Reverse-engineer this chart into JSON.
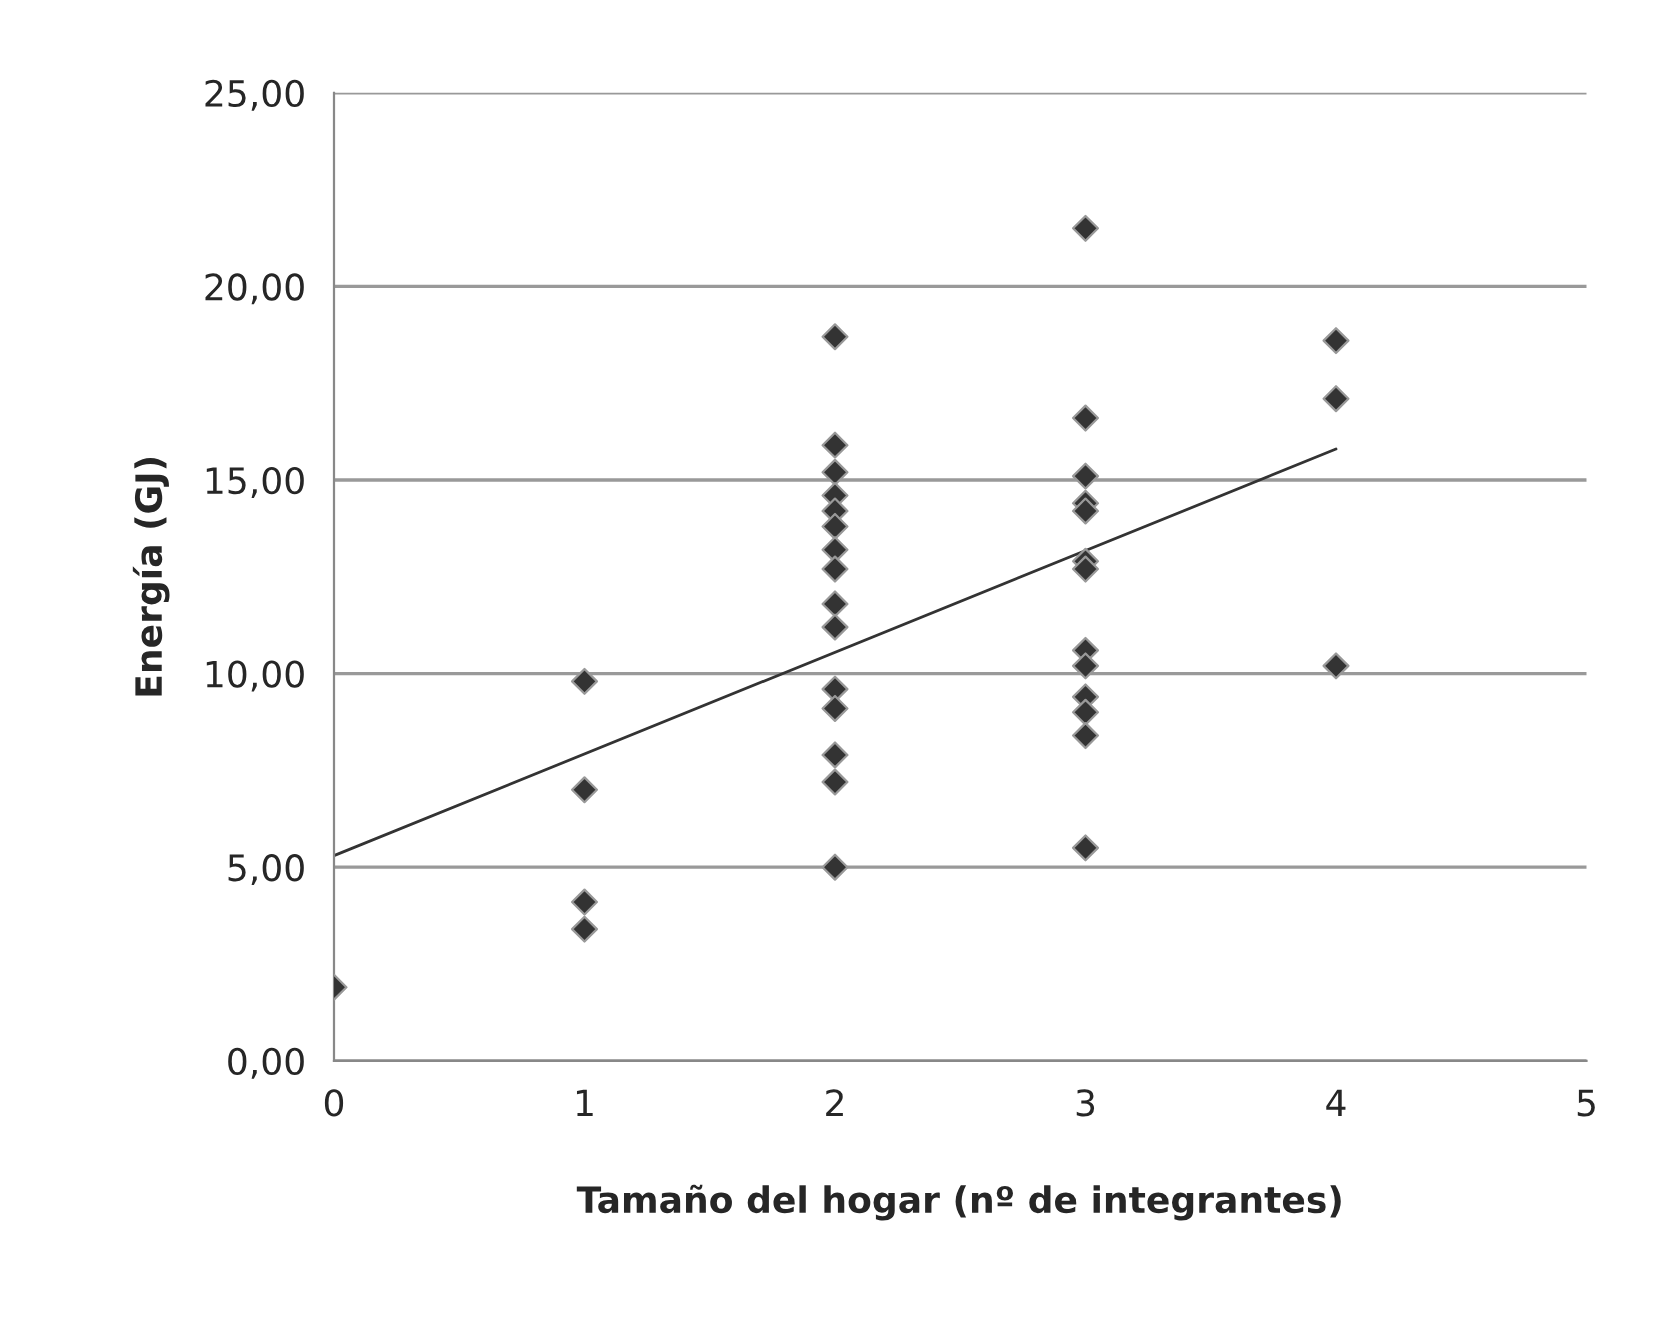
{
  "chart_data": {
    "type": "scatter",
    "xlabel": "Tamaño del hogar (nº de integrantes)",
    "ylabel": "Energía (GJ)",
    "xlim": [
      0,
      5
    ],
    "xticks": [
      0,
      1,
      2,
      3,
      4,
      5
    ],
    "ylim": [
      0,
      25
    ],
    "yticks": [
      {
        "value": 0,
        "label": "0,00"
      },
      {
        "value": 5,
        "label": "5,00"
      },
      {
        "value": 10,
        "label": "10,00"
      },
      {
        "value": 15,
        "label": "15,00"
      },
      {
        "value": 20,
        "label": "20,00"
      },
      {
        "value": 25,
        "label": "25,00"
      }
    ],
    "grid": "y",
    "marker": "diamond",
    "series": [
      {
        "color": "#333333",
        "x": [
          0,
          1,
          1,
          1,
          1,
          2,
          2,
          2,
          2,
          2,
          2,
          2,
          2,
          2,
          2,
          2,
          2,
          2,
          2,
          2,
          3,
          3,
          3,
          3,
          3,
          3,
          3,
          3,
          3,
          3,
          3,
          3,
          3,
          4,
          4,
          4
        ],
        "values": [
          1.9,
          9.8,
          7.0,
          4.1,
          3.4,
          18.7,
          15.9,
          15.2,
          14.6,
          14.2,
          13.8,
          13.2,
          12.7,
          11.8,
          11.2,
          9.6,
          9.1,
          7.9,
          7.2,
          5.0,
          21.5,
          16.6,
          15.1,
          14.4,
          14.2,
          12.9,
          12.7,
          10.6,
          10.2,
          9.4,
          9.0,
          8.4,
          5.5,
          18.6,
          17.1,
          10.2
        ]
      },
      {
        "type": "line",
        "color": "#333333",
        "x": [
          0,
          4
        ],
        "values": [
          5.3,
          15.8
        ],
        "marker": "none"
      }
    ]
  }
}
